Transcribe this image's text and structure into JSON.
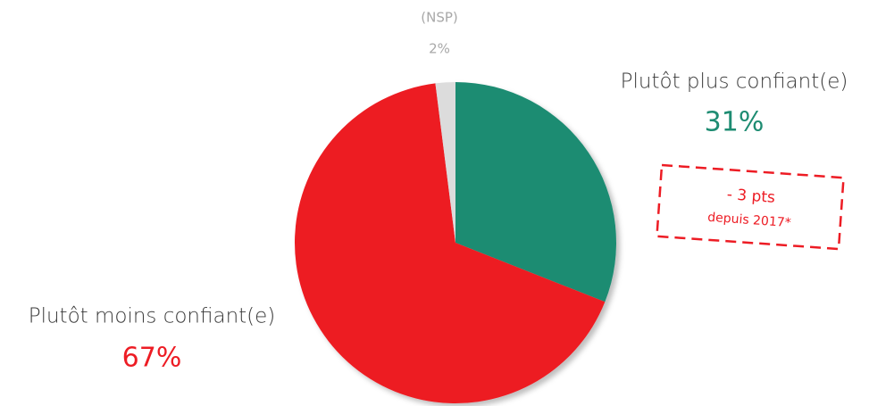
{
  "chart_data": {
    "type": "pie",
    "categories": [
      "Plutôt plus confiant(e)",
      "Plutôt moins confiant(e)",
      "(NSP)"
    ],
    "values": [
      31,
      67,
      2
    ],
    "value_labels": [
      "31%",
      "67%",
      "2%"
    ],
    "colors": [
      "#1e8c72",
      "#ed1c24",
      "#dcdcdc"
    ],
    "annotation": {
      "line1": "- 3 pts",
      "line2": "depuis 2017*"
    }
  }
}
